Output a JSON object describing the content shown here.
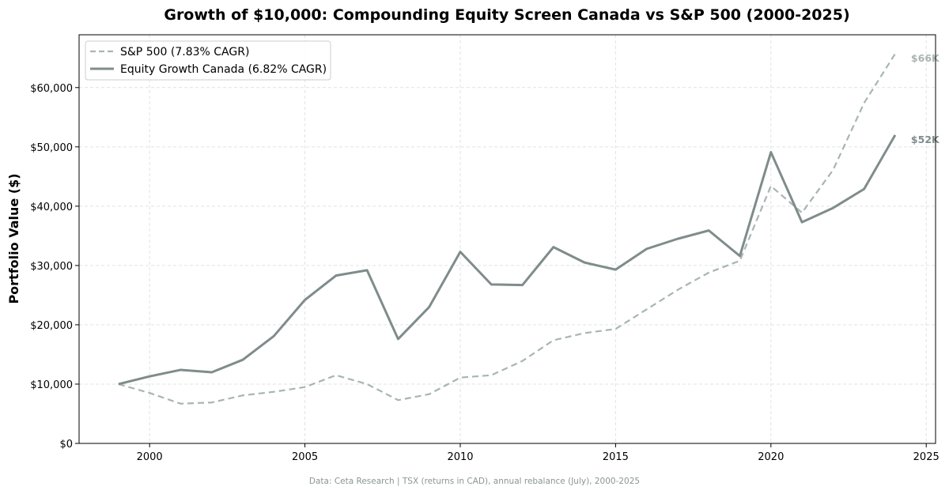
{
  "chart_data": {
    "type": "line",
    "title": "Growth of $10,000: Compounding Equity Screen Canada vs S&P 500 (2000-2025)",
    "xlabel": "",
    "ylabel": "Portfolio Value ($)",
    "footer": "Data: Ceta Research | TSX (returns in CAD), annual rebalance (July), 2000-2025",
    "xlim": [
      1997.73,
      2025.3
    ],
    "ylim": [
      0,
      68900
    ],
    "x_ticks": [
      2000,
      2005,
      2010,
      2015,
      2020,
      2025
    ],
    "x_tick_labels": [
      "2000",
      "2005",
      "2010",
      "2015",
      "2020",
      "2025"
    ],
    "y_ticks": [
      0,
      10000,
      20000,
      30000,
      40000,
      50000,
      60000
    ],
    "y_tick_labels": [
      "$0",
      "$10,000",
      "$20,000",
      "$30,000",
      "$40,000",
      "$50,000",
      "$60,000"
    ],
    "grid": true,
    "legend_position": "top-left",
    "x": [
      1999,
      2000,
      2001,
      2002,
      2003,
      2004,
      2005,
      2006,
      2007,
      2008,
      2009,
      2010,
      2011,
      2012,
      2013,
      2014,
      2015,
      2016,
      2017,
      2018,
      2019,
      2020,
      2021,
      2022,
      2023,
      2024
    ],
    "series": [
      {
        "name": "S&P 500 (7.83% CAGR)",
        "style": "dashed",
        "color": "#a8b5b3",
        "end_label": "$66K",
        "values": [
          10000,
          8500,
          6700,
          6900,
          8100,
          8700,
          9500,
          11500,
          10000,
          7300,
          8300,
          11100,
          11500,
          13900,
          17400,
          18600,
          19300,
          22600,
          25900,
          28800,
          30800,
          43400,
          38900,
          46100,
          57400,
          65700
        ]
      },
      {
        "name": "Equity Growth Canada (6.82% CAGR)",
        "style": "solid",
        "color": "#7f8c8b",
        "end_label": "$52K",
        "values": [
          10000,
          11300,
          12400,
          12000,
          14100,
          18100,
          24200,
          28300,
          29200,
          17600,
          23000,
          32300,
          26800,
          26700,
          33100,
          30500,
          29300,
          32800,
          34500,
          35900,
          31600,
          49100,
          37300,
          39700,
          42900,
          52000
        ]
      }
    ]
  }
}
